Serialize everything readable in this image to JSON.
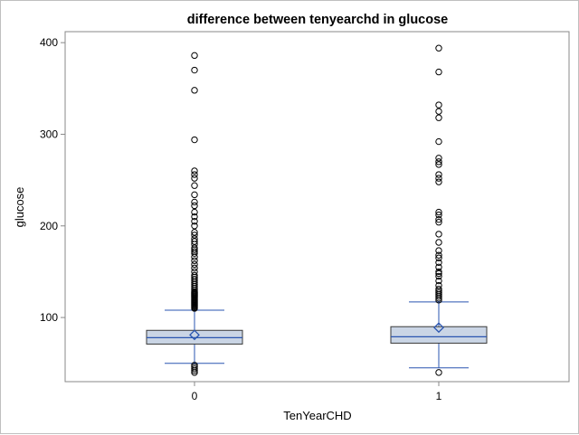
{
  "chart_data": {
    "type": "box",
    "title": "difference between tenyearchd in glucose",
    "xlabel": "TenYearCHD",
    "ylabel": "glucose",
    "categories": [
      "0",
      "1"
    ],
    "ylim": [
      30,
      412
    ],
    "yticks": [
      100,
      200,
      300,
      400
    ],
    "grid": false,
    "legend": "none",
    "colors": {
      "box_fill": "#cad5e5",
      "box_stroke": "#3a3a3a",
      "whisker": "#2a55b0",
      "median": "#2a55b0",
      "mean_marker": "#2a55b0",
      "outlier": "#000000",
      "axis": "#888888"
    },
    "boxes": [
      {
        "category": "0",
        "whisker_low": 50,
        "q1": 71,
        "median": 78,
        "q3": 86,
        "whisker_high": 108,
        "mean": 81,
        "outliers": [
          40,
          42,
          44,
          46,
          48,
          110,
          111,
          112,
          113,
          114,
          115,
          116,
          117,
          118,
          119,
          120,
          121,
          122,
          123,
          124,
          125,
          126,
          127,
          128,
          130,
          132,
          134,
          136,
          138,
          140,
          142,
          144,
          146,
          150,
          154,
          158,
          162,
          166,
          170,
          172,
          174,
          176,
          180,
          183,
          186,
          190,
          193,
          200,
          205,
          210,
          215,
          222,
          226,
          234,
          244,
          252,
          256,
          260,
          294,
          348,
          370,
          386
        ]
      },
      {
        "category": "1",
        "whisker_low": 45,
        "q1": 72,
        "median": 79,
        "q3": 90,
        "whisker_high": 117,
        "mean": 89,
        "outliers": [
          40,
          119,
          121,
          123,
          125,
          127,
          129,
          131,
          135,
          140,
          145,
          148,
          150,
          155,
          160,
          165,
          168,
          173,
          182,
          191,
          204,
          207,
          212,
          215,
          248,
          252,
          256,
          267,
          270,
          274,
          292,
          318,
          325,
          332,
          368,
          394
        ]
      }
    ]
  }
}
